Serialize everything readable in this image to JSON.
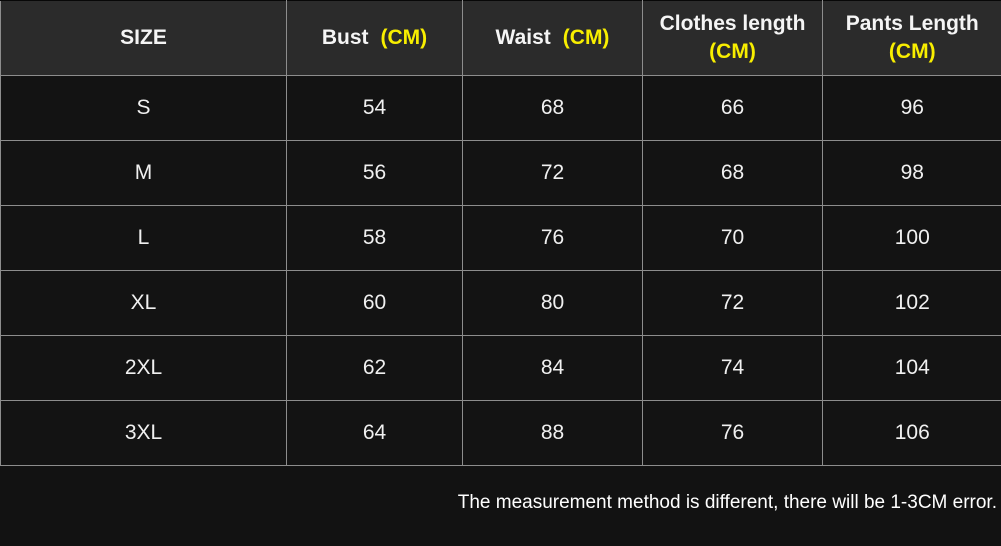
{
  "colors": {
    "accent_yellow": "#f8ee00",
    "header_bg": "#2b2b2b",
    "cell_bg": "#131313",
    "grid_line": "#8d8d8d",
    "text": "#f0f0f0"
  },
  "chart_data": {
    "type": "table",
    "columns": [
      {
        "label": "SIZE",
        "unit": ""
      },
      {
        "label": "Bust",
        "unit": "(CM)"
      },
      {
        "label": "Waist",
        "unit": "(CM)"
      },
      {
        "label": "Clothes length",
        "unit": "(CM)"
      },
      {
        "label": "Pants Length",
        "unit": "(CM)"
      }
    ],
    "rows": [
      [
        "S",
        "54",
        "68",
        "66",
        "96"
      ],
      [
        "M",
        "56",
        "72",
        "68",
        "98"
      ],
      [
        "L",
        "58",
        "76",
        "70",
        "100"
      ],
      [
        "XL",
        "60",
        "80",
        "72",
        "102"
      ],
      [
        "2XL",
        "62",
        "84",
        "74",
        "104"
      ],
      [
        "3XL",
        "64",
        "88",
        "76",
        "106"
      ]
    ]
  },
  "footer": {
    "note": "The measurement method is different, there will be 1-3CM error."
  }
}
